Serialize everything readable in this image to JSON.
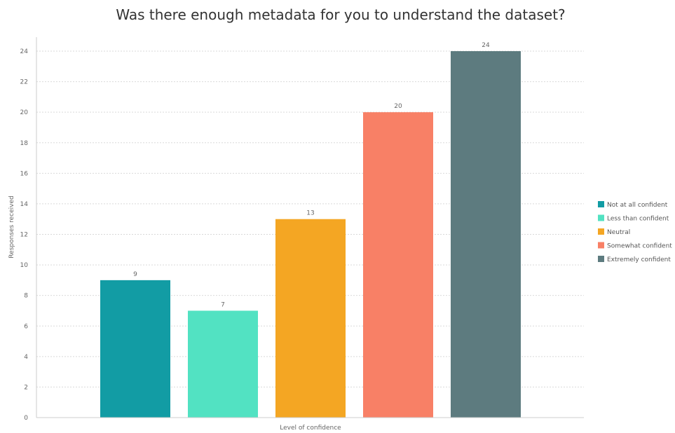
{
  "chart_data": {
    "type": "bar",
    "title": "Was there enough metadata for you to understand the dataset?",
    "xlabel": "Level of confidence",
    "ylabel": "Responses received",
    "ylim": [
      0,
      24
    ],
    "yticks": [
      0,
      2,
      4,
      6,
      8,
      10,
      12,
      14,
      16,
      18,
      20,
      22,
      24
    ],
    "grid": true,
    "legend_position": "right",
    "categories": [
      "Not at all confident",
      "Less than confident",
      "Neutral",
      "Somewhat confident",
      "Extremely confident"
    ],
    "values": [
      9,
      7,
      13,
      20,
      24
    ],
    "colors": [
      "#129ca4",
      "#52e2c2",
      "#f4a623",
      "#f88066",
      "#5d7b7f"
    ]
  }
}
